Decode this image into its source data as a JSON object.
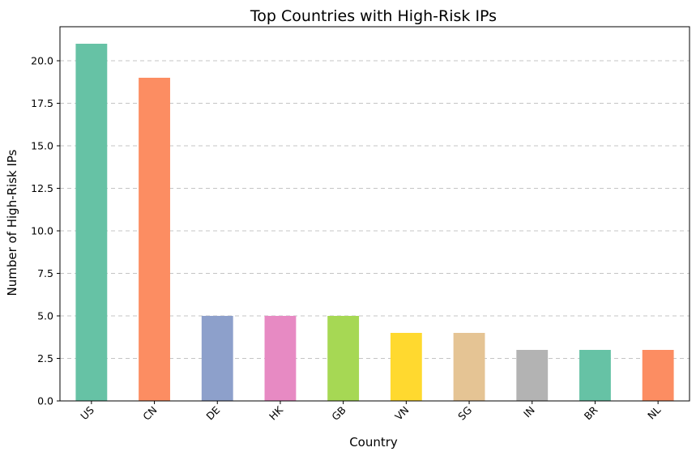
{
  "chart_data": {
    "type": "bar",
    "title": "Top Countries with High-Risk IPs",
    "xlabel": "Country",
    "ylabel": "Number of High-Risk IPs",
    "categories": [
      "US",
      "CN",
      "DE",
      "HK",
      "GB",
      "VN",
      "SG",
      "IN",
      "BR",
      "NL"
    ],
    "values": [
      21,
      19,
      5,
      5,
      5,
      4,
      4,
      3,
      3,
      3
    ],
    "colors": [
      "#66c2a5",
      "#fc8d62",
      "#8da0cb",
      "#e78ac3",
      "#a6d854",
      "#ffd92f",
      "#e5c494",
      "#b3b3b3",
      "#66c2a5",
      "#fc8d62"
    ],
    "ylim": [
      0,
      22
    ],
    "yticks": [
      0,
      2.5,
      5,
      7.5,
      10,
      12.5,
      15,
      17.5,
      20
    ],
    "ytick_labels": [
      "0.0",
      "2.5",
      "5.0",
      "7.5",
      "10.0",
      "12.5",
      "15.0",
      "17.5",
      "20.0"
    ],
    "grid": "y-dashed",
    "legend": "none"
  }
}
